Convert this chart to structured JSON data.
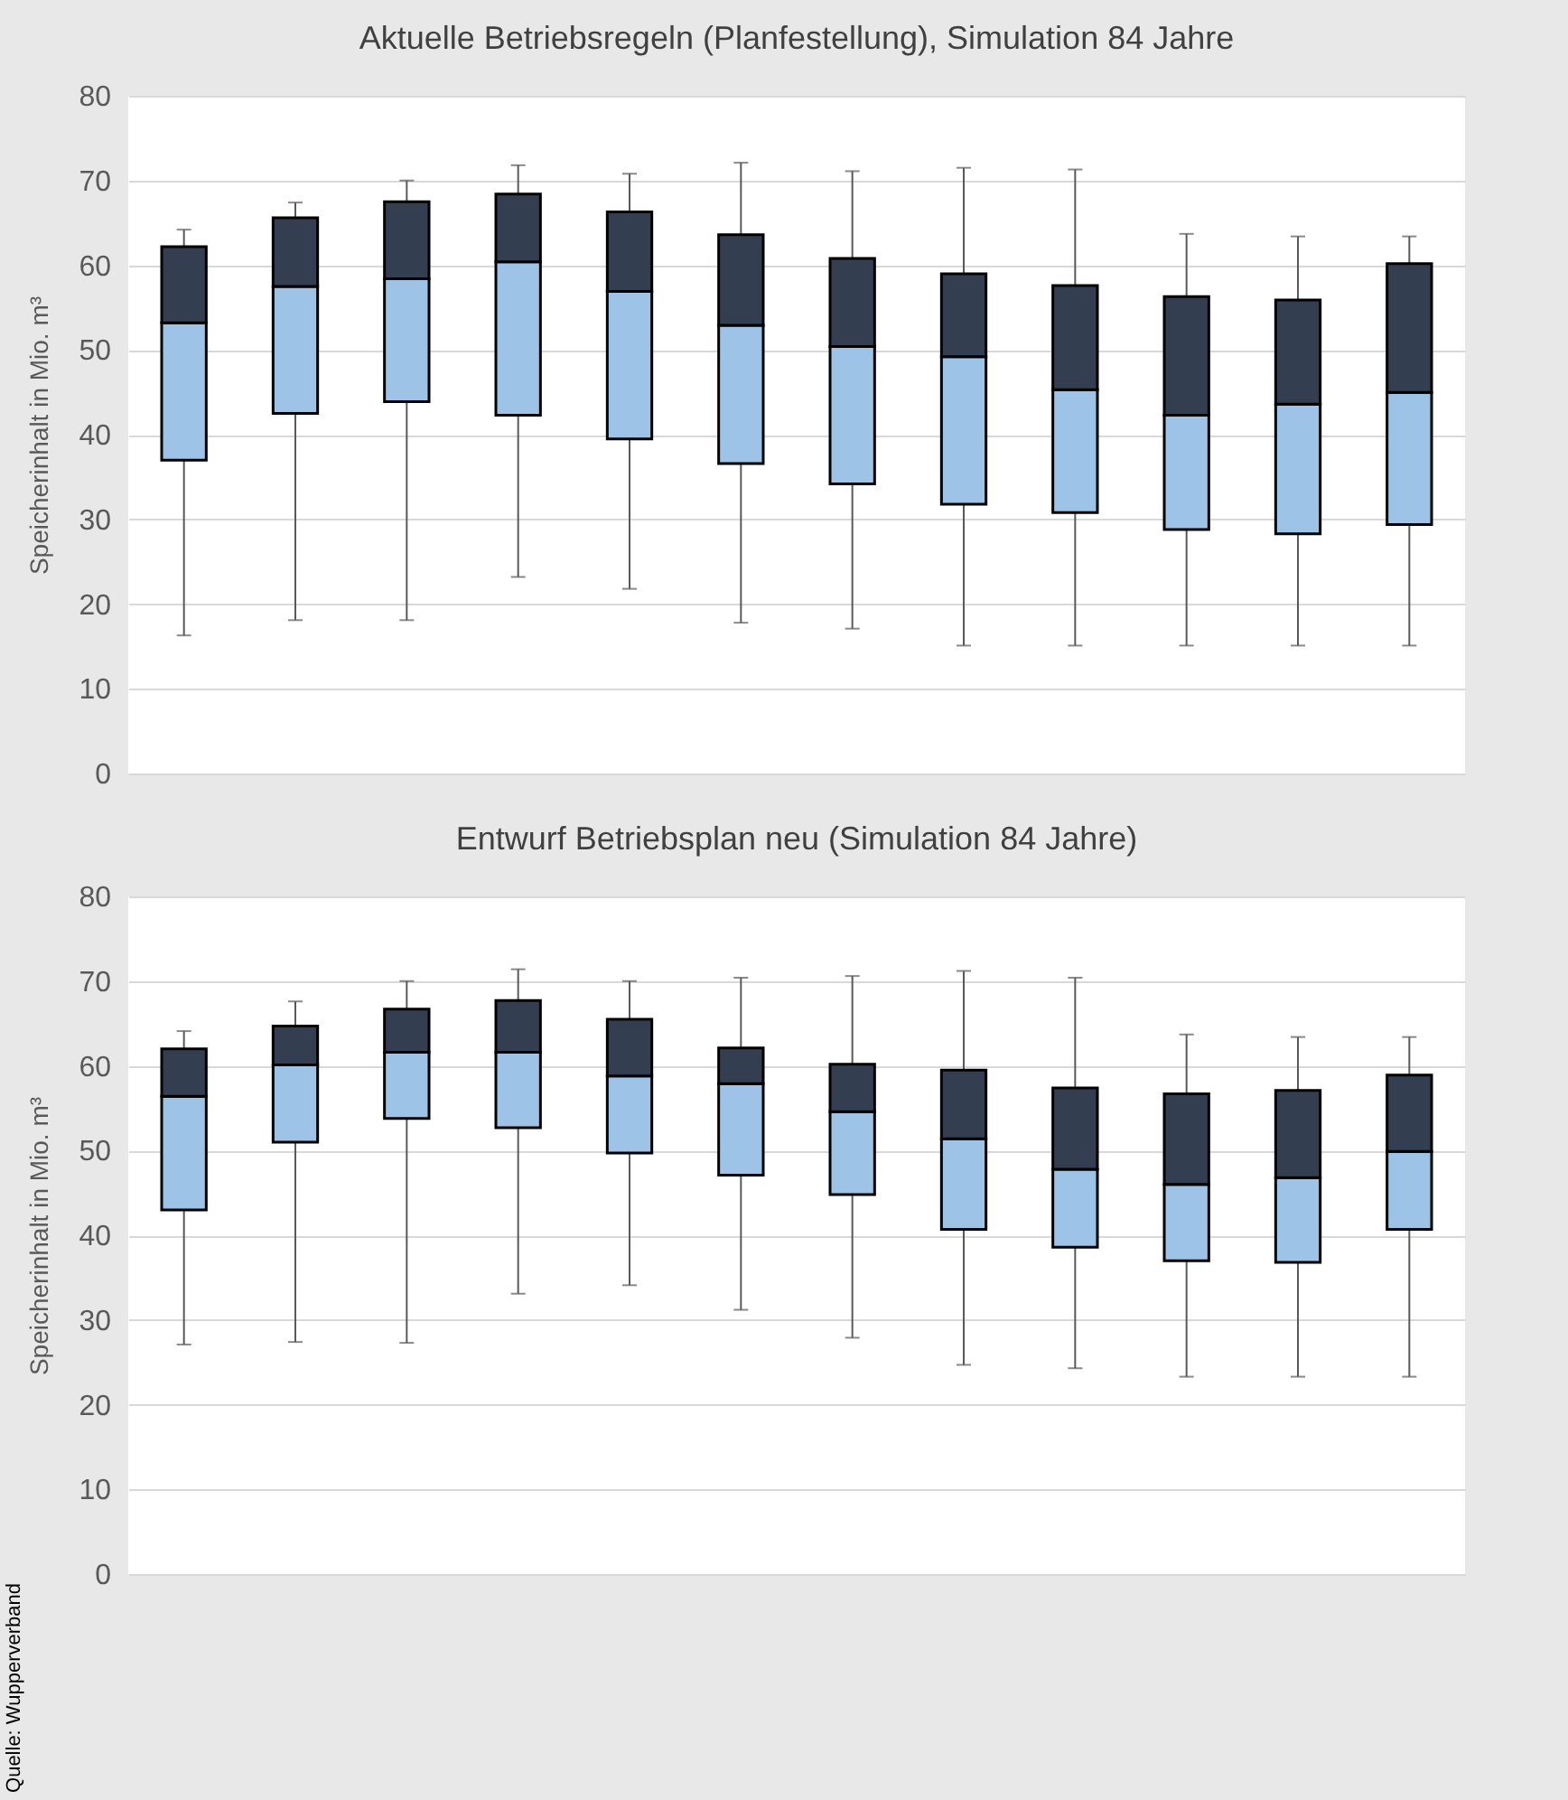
{
  "chart_data": [
    {
      "type": "box",
      "title": "Aktuelle Betriebsregeln (Planfestellung), Simulation 84 Jahre",
      "ylabel": "Speicherinhalt in Mio. m³",
      "categories": [
        null,
        null,
        null,
        null,
        null,
        null,
        null,
        null,
        null,
        null,
        null,
        null
      ],
      "ylim": [
        0,
        80
      ],
      "yticks": [
        0,
        10,
        20,
        30,
        40,
        50,
        60,
        70,
        80
      ],
      "grid": true,
      "colors": [
        "#333f50",
        "#333f50",
        "#333f50",
        "#333f50",
        "#333f50",
        "#333f50",
        "#333f50",
        "#333f50",
        "#333f50",
        "#333f50",
        "#333f50",
        "#333f50"
      ],
      "series": [
        {
          "color": "#9dc3e6",
          "boxes": [
            {
              "low": 16.3,
              "q1": 37,
              "median": 53.2,
              "q3": 62.2,
              "high": 64.2
            },
            {
              "low": 18.1,
              "q1": 42.5,
              "median": 57.5,
              "q3": 65.6,
              "high": 67.4
            },
            {
              "low": 18.1,
              "q1": 43.9,
              "median": 58.4,
              "q3": 67.5,
              "high": 70
            },
            {
              "low": 23.2,
              "q1": 42.3,
              "median": 60.4,
              "q3": 68.4,
              "high": 71.8
            },
            {
              "low": 21.8,
              "q1": 39.5,
              "median": 56.9,
              "q3": 66.3,
              "high": 70.8
            },
            {
              "low": 17.8,
              "q1": 36.6,
              "median": 52.9,
              "q3": 63.6,
              "high": 72.1
            },
            {
              "low": 17.1,
              "q1": 34.2,
              "median": 50.4,
              "q3": 60.8,
              "high": 71.1
            },
            {
              "low": 15.1,
              "q1": 31.8,
              "median": 49.2,
              "q3": 59,
              "high": 71.5
            },
            {
              "low": 15.1,
              "q1": 30.8,
              "median": 45.3,
              "q3": 57.6,
              "high": 71.3
            },
            {
              "low": 15.1,
              "q1": 28.8,
              "median": 42.3,
              "q3": 56.3,
              "high": 63.7
            },
            {
              "low": 15.1,
              "q1": 28.3,
              "median": 43.6,
              "q3": 55.9,
              "high": 63.4
            },
            {
              "low": 15.1,
              "q1": 29.4,
              "median": 45,
              "q3": 60.2,
              "high": 63.4
            }
          ]
        }
      ]
    },
    {
      "type": "box",
      "title": "Entwurf Betriebsplan neu (Simulation 84 Jahre)",
      "ylabel": "Speicherinhalt in Mio. m³",
      "categories": [
        null,
        null,
        null,
        null,
        null,
        null,
        null,
        null,
        null,
        null,
        null,
        null
      ],
      "ylim": [
        0,
        80
      ],
      "yticks": [
        0,
        10,
        20,
        30,
        40,
        50,
        60,
        70,
        80
      ],
      "grid": true,
      "colors": [
        "#333f50",
        "#333f50",
        "#333f50",
        "#333f50",
        "#333f50",
        "#333f50",
        "#333f50",
        "#333f50",
        "#333f50",
        "#333f50",
        "#333f50",
        "#333f50"
      ],
      "annotations": [
        "Quelle: Wupperverband"
      ],
      "series": [
        {
          "color": "#9dc3e6",
          "boxes": [
            {
              "low": 27.1,
              "q1": 43,
              "median": 56.4,
              "q3": 62,
              "high": 64.1
            },
            {
              "low": 27.4,
              "q1": 51,
              "median": 60.1,
              "q3": 64.7,
              "high": 67.6
            },
            {
              "low": 27.3,
              "q1": 53.8,
              "median": 61.6,
              "q3": 66.7,
              "high": 70
            },
            {
              "low": 33.1,
              "q1": 52.7,
              "median": 61.6,
              "q3": 67.7,
              "high": 71.4
            },
            {
              "low": 34.1,
              "q1": 49.7,
              "median": 58.8,
              "q3": 65.5,
              "high": 70
            },
            {
              "low": 31.2,
              "q1": 47.1,
              "median": 57.9,
              "q3": 62.1,
              "high": 70.4
            },
            {
              "low": 27.9,
              "q1": 44.8,
              "median": 54.6,
              "q3": 60.2,
              "high": 70.6
            },
            {
              "low": 24.7,
              "q1": 40.7,
              "median": 51.4,
              "q3": 59.5,
              "high": 71.2
            },
            {
              "low": 24.3,
              "q1": 38.6,
              "median": 47.8,
              "q3": 57.4,
              "high": 70.4
            },
            {
              "low": 23.3,
              "q1": 37,
              "median": 46,
              "q3": 56.7,
              "high": 63.7
            },
            {
              "low": 23.3,
              "q1": 36.8,
              "median": 46.8,
              "q3": 57.1,
              "high": 63.4
            },
            {
              "low": 23.3,
              "q1": 40.7,
              "median": 49.9,
              "q3": 58.9,
              "high": 63.4
            }
          ]
        }
      ]
    }
  ]
}
